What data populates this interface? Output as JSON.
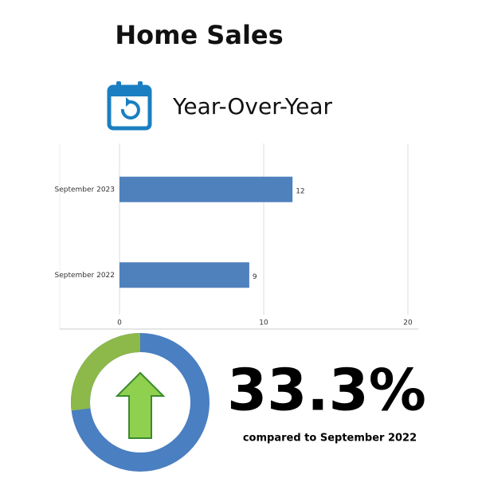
{
  "header": {
    "title": "Home Sales",
    "subtitle": "Year-Over-Year"
  },
  "chart_data": {
    "type": "bar",
    "orientation": "horizontal",
    "categories": [
      "September 2023",
      "September 2022"
    ],
    "values": [
      12,
      9
    ],
    "color": "#4f81bd",
    "xlim": [
      0,
      20
    ],
    "xticks": [
      0,
      10,
      20
    ],
    "grid": true
  },
  "stat": {
    "value": "33.3%",
    "caption": "compared to September 2022"
  }
}
